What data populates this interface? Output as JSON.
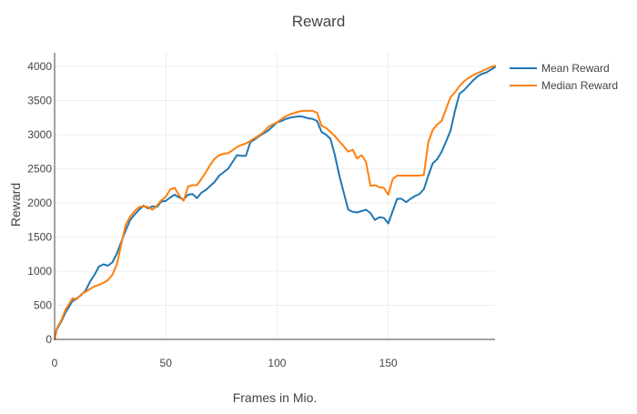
{
  "chart_data": {
    "type": "line",
    "title": "Reward",
    "xlabel": "Frames in Mio.",
    "ylabel": "Reward",
    "xlim": [
      0,
      198
    ],
    "ylim": [
      0,
      4200
    ],
    "x_ticks": [
      0,
      50,
      100,
      150
    ],
    "y_ticks": [
      0,
      500,
      1000,
      1500,
      2000,
      2500,
      3000,
      3500,
      4000
    ],
    "grid": true,
    "legend_position": "top-right",
    "series": [
      {
        "name": "Mean Reward",
        "color": "#1f77b4",
        "points": [
          [
            0,
            0
          ],
          [
            1,
            150
          ],
          [
            3,
            260
          ],
          [
            5,
            400
          ],
          [
            8,
            560
          ],
          [
            10,
            600
          ],
          [
            12,
            650
          ],
          [
            14,
            720
          ],
          [
            16,
            850
          ],
          [
            18,
            950
          ],
          [
            20,
            1070
          ],
          [
            22,
            1100
          ],
          [
            24,
            1080
          ],
          [
            26,
            1130
          ],
          [
            28,
            1260
          ],
          [
            30,
            1430
          ],
          [
            32,
            1600
          ],
          [
            34,
            1750
          ],
          [
            36,
            1830
          ],
          [
            38,
            1900
          ],
          [
            40,
            1960
          ],
          [
            42,
            1920
          ],
          [
            44,
            1950
          ],
          [
            46,
            1940
          ],
          [
            48,
            2020
          ],
          [
            50,
            2030
          ],
          [
            52,
            2080
          ],
          [
            54,
            2120
          ],
          [
            56,
            2080
          ],
          [
            58,
            2050
          ],
          [
            60,
            2120
          ],
          [
            62,
            2130
          ],
          [
            64,
            2070
          ],
          [
            66,
            2150
          ],
          [
            68,
            2190
          ],
          [
            70,
            2250
          ],
          [
            72,
            2310
          ],
          [
            74,
            2400
          ],
          [
            76,
            2450
          ],
          [
            78,
            2500
          ],
          [
            80,
            2600
          ],
          [
            82,
            2700
          ],
          [
            84,
            2690
          ],
          [
            86,
            2690
          ],
          [
            88,
            2890
          ],
          [
            90,
            2930
          ],
          [
            92,
            2980
          ],
          [
            94,
            3020
          ],
          [
            96,
            3060
          ],
          [
            98,
            3120
          ],
          [
            100,
            3180
          ],
          [
            102,
            3200
          ],
          [
            104,
            3230
          ],
          [
            106,
            3250
          ],
          [
            108,
            3260
          ],
          [
            110,
            3270
          ],
          [
            112,
            3260
          ],
          [
            114,
            3240
          ],
          [
            116,
            3230
          ],
          [
            118,
            3200
          ],
          [
            120,
            3040
          ],
          [
            122,
            3000
          ],
          [
            124,
            2940
          ],
          [
            126,
            2700
          ],
          [
            128,
            2400
          ],
          [
            130,
            2150
          ],
          [
            132,
            1900
          ],
          [
            134,
            1870
          ],
          [
            136,
            1860
          ],
          [
            138,
            1880
          ],
          [
            140,
            1900
          ],
          [
            142,
            1850
          ],
          [
            144,
            1750
          ],
          [
            146,
            1790
          ],
          [
            148,
            1780
          ],
          [
            150,
            1700
          ],
          [
            152,
            1880
          ],
          [
            154,
            2060
          ],
          [
            156,
            2060
          ],
          [
            158,
            2010
          ],
          [
            160,
            2060
          ],
          [
            162,
            2100
          ],
          [
            164,
            2130
          ],
          [
            166,
            2200
          ],
          [
            168,
            2400
          ],
          [
            170,
            2580
          ],
          [
            172,
            2640
          ],
          [
            174,
            2750
          ],
          [
            176,
            2900
          ],
          [
            178,
            3060
          ],
          [
            180,
            3350
          ],
          [
            182,
            3600
          ],
          [
            184,
            3650
          ],
          [
            186,
            3720
          ],
          [
            188,
            3790
          ],
          [
            190,
            3850
          ],
          [
            192,
            3890
          ],
          [
            194,
            3910
          ],
          [
            196,
            3950
          ],
          [
            198,
            3990
          ]
        ]
      },
      {
        "name": "Median Reward",
        "color": "#ff7f0e",
        "points": [
          [
            0,
            0
          ],
          [
            1,
            160
          ],
          [
            3,
            280
          ],
          [
            5,
            440
          ],
          [
            8,
            600
          ],
          [
            10,
            590
          ],
          [
            12,
            660
          ],
          [
            14,
            700
          ],
          [
            16,
            740
          ],
          [
            18,
            780
          ],
          [
            20,
            800
          ],
          [
            22,
            830
          ],
          [
            24,
            870
          ],
          [
            26,
            950
          ],
          [
            28,
            1100
          ],
          [
            30,
            1400
          ],
          [
            32,
            1680
          ],
          [
            34,
            1800
          ],
          [
            36,
            1880
          ],
          [
            38,
            1940
          ],
          [
            40,
            1950
          ],
          [
            42,
            1940
          ],
          [
            44,
            1900
          ],
          [
            46,
            1960
          ],
          [
            48,
            2040
          ],
          [
            50,
            2090
          ],
          [
            52,
            2200
          ],
          [
            54,
            2220
          ],
          [
            56,
            2110
          ],
          [
            58,
            2030
          ],
          [
            60,
            2240
          ],
          [
            62,
            2260
          ],
          [
            64,
            2260
          ],
          [
            66,
            2350
          ],
          [
            68,
            2450
          ],
          [
            70,
            2560
          ],
          [
            72,
            2650
          ],
          [
            74,
            2700
          ],
          [
            76,
            2720
          ],
          [
            78,
            2730
          ],
          [
            80,
            2770
          ],
          [
            82,
            2820
          ],
          [
            84,
            2850
          ],
          [
            86,
            2870
          ],
          [
            88,
            2910
          ],
          [
            90,
            2950
          ],
          [
            92,
            2990
          ],
          [
            94,
            3040
          ],
          [
            96,
            3110
          ],
          [
            98,
            3150
          ],
          [
            100,
            3180
          ],
          [
            102,
            3230
          ],
          [
            104,
            3270
          ],
          [
            106,
            3300
          ],
          [
            108,
            3320
          ],
          [
            110,
            3340
          ],
          [
            112,
            3350
          ],
          [
            114,
            3350
          ],
          [
            116,
            3350
          ],
          [
            118,
            3320
          ],
          [
            120,
            3130
          ],
          [
            122,
            3100
          ],
          [
            124,
            3040
          ],
          [
            126,
            2980
          ],
          [
            128,
            2900
          ],
          [
            130,
            2830
          ],
          [
            132,
            2750
          ],
          [
            134,
            2780
          ],
          [
            136,
            2650
          ],
          [
            138,
            2700
          ],
          [
            140,
            2600
          ],
          [
            142,
            2250
          ],
          [
            144,
            2260
          ],
          [
            146,
            2230
          ],
          [
            148,
            2220
          ],
          [
            150,
            2120
          ],
          [
            152,
            2350
          ],
          [
            154,
            2400
          ],
          [
            156,
            2400
          ],
          [
            158,
            2400
          ],
          [
            160,
            2400
          ],
          [
            162,
            2400
          ],
          [
            164,
            2400
          ],
          [
            166,
            2410
          ],
          [
            168,
            2890
          ],
          [
            170,
            3070
          ],
          [
            172,
            3150
          ],
          [
            174,
            3200
          ],
          [
            176,
            3380
          ],
          [
            178,
            3550
          ],
          [
            180,
            3620
          ],
          [
            182,
            3710
          ],
          [
            184,
            3780
          ],
          [
            186,
            3830
          ],
          [
            188,
            3870
          ],
          [
            190,
            3900
          ],
          [
            192,
            3930
          ],
          [
            194,
            3960
          ],
          [
            196,
            3990
          ],
          [
            198,
            4010
          ]
        ]
      }
    ]
  }
}
